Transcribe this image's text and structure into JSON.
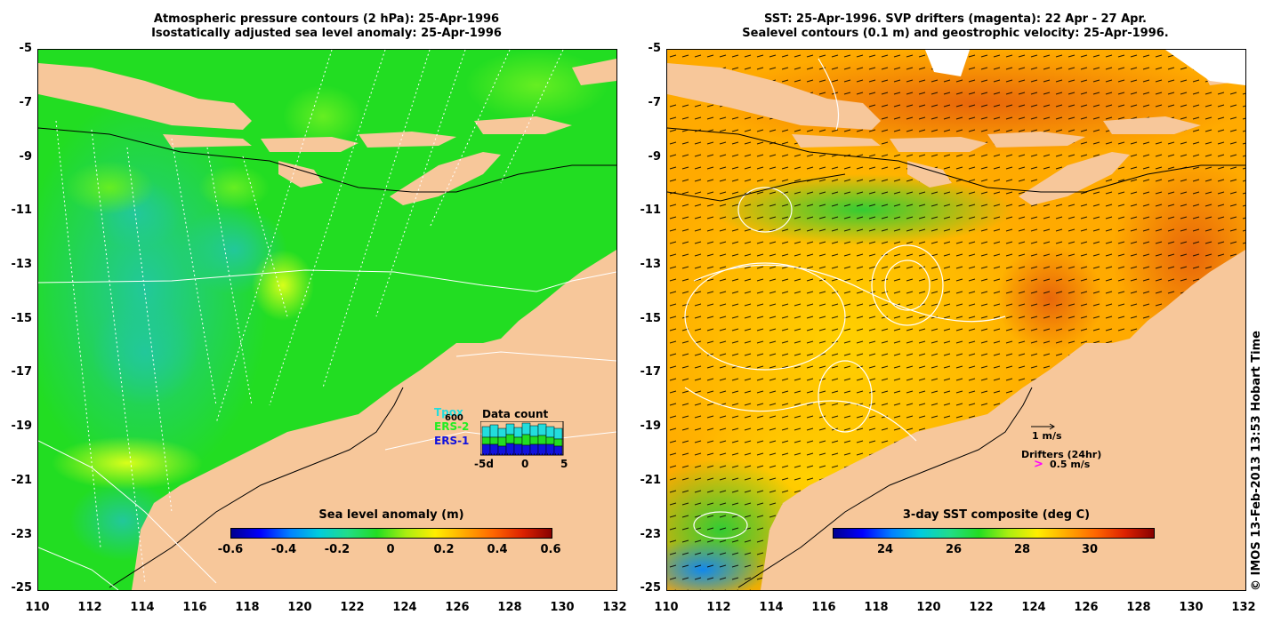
{
  "left_panel": {
    "title_line1": "Atmospheric pressure contours (2 hPa): 25-Apr-1996",
    "title_line2": "Isostatically adjusted sea level anomaly: 25-Apr-1996",
    "x_ticks": [
      "110",
      "112",
      "114",
      "116",
      "118",
      "120",
      "122",
      "124",
      "126",
      "128",
      "130",
      "132"
    ],
    "y_ticks": [
      "-5",
      "-7",
      "-9",
      "-11",
      "-13",
      "-15",
      "-17",
      "-19",
      "-21",
      "-23",
      "-25"
    ],
    "colorbar": {
      "title": "Sea level anomaly (m)",
      "ticks": [
        "-0.6",
        "-0.4",
        "-0.2",
        "0",
        "0.2",
        "0.4",
        "0.6"
      ]
    },
    "data_count": {
      "title": "Data count",
      "legend": [
        "Tpox",
        "ERS-2",
        "ERS-1"
      ],
      "y_label": "600",
      "x_ticks": [
        "-5d",
        "0",
        "5"
      ]
    }
  },
  "right_panel": {
    "title_line1": "SST: 25-Apr-1996. SVP drifters (magenta): 22 Apr - 27 Apr.",
    "title_line2": "Sealevel contours (0.1 m) and geostrophic velocity: 25-Apr-1996.",
    "x_ticks": [
      "110",
      "112",
      "114",
      "116",
      "118",
      "120",
      "122",
      "124",
      "126",
      "128",
      "130",
      "132"
    ],
    "y_ticks": [
      "-5",
      "-7",
      "-9",
      "-11",
      "-13",
      "-15",
      "-17",
      "-19",
      "-21",
      "-23",
      "-25"
    ],
    "colorbar": {
      "title": "3-day SST composite (deg C)",
      "ticks": [
        "24",
        "26",
        "28",
        "30"
      ]
    },
    "velocity_scale": "1 m/s",
    "drifters_label": "Drifters (24hr)",
    "drifters_symbol": ">",
    "drifters_scale": "0.5 m/s"
  },
  "credit": "© IMOS 13-Feb-2013 13:53 Hobart Time",
  "colors": {
    "land": "#f7c79a",
    "ocean_sla": "#22dd22",
    "ocean_sst": "#ffaa00",
    "drifter_magenta": "#ff00ff"
  }
}
